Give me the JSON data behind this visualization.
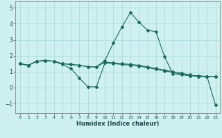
{
  "xlabel": "Humidex (Indice chaleur)",
  "background_color": "#cef0f0",
  "grid_color": "#b0dede",
  "line_color": "#1a6b5a",
  "xlim": [
    -0.5,
    23.5
  ],
  "ylim": [
    -1.6,
    5.4
  ],
  "xticks": [
    0,
    1,
    2,
    3,
    4,
    5,
    6,
    7,
    8,
    9,
    10,
    11,
    12,
    13,
    14,
    15,
    16,
    17,
    18,
    19,
    20,
    21,
    22,
    23
  ],
  "yticks": [
    -1,
    0,
    1,
    2,
    3,
    4,
    5
  ],
  "series": [
    [
      1.5,
      1.4,
      1.65,
      1.7,
      1.65,
      1.5,
      1.45,
      1.4,
      1.3,
      1.3,
      1.7,
      2.8,
      3.8,
      4.7,
      4.1,
      3.6,
      3.5,
      1.95,
      0.85,
      0.8,
      0.75,
      0.75,
      0.7,
      0.7
    ],
    [
      1.5,
      1.4,
      1.65,
      1.7,
      1.65,
      1.5,
      1.45,
      1.4,
      1.3,
      1.3,
      1.6,
      1.55,
      1.5,
      1.45,
      1.4,
      1.3,
      1.2,
      1.1,
      1.0,
      0.9,
      0.8,
      0.7,
      0.7,
      -1.1
    ],
    [
      1.5,
      1.4,
      1.65,
      1.7,
      1.65,
      1.45,
      1.2,
      0.6,
      0.05,
      0.05,
      1.55,
      1.5,
      1.45,
      1.4,
      1.35,
      1.25,
      1.15,
      1.05,
      0.95,
      0.85,
      0.75,
      0.7,
      0.7,
      0.7
    ]
  ]
}
